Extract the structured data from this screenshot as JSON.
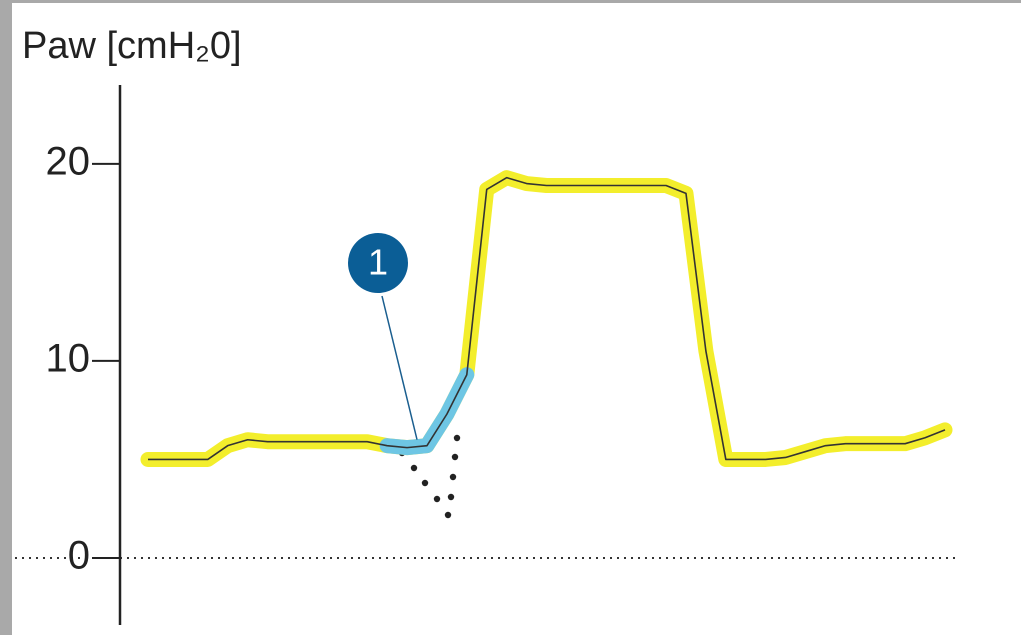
{
  "chart_data": {
    "type": "line",
    "title": "Paw [cmH₂0]",
    "categories": [
      null,
      null,
      null,
      null,
      null,
      null,
      null,
      null,
      null,
      null,
      null,
      null,
      null,
      null,
      null,
      null,
      null,
      null,
      null,
      null,
      null,
      null,
      null,
      null,
      null,
      null,
      null,
      null,
      null,
      null,
      null,
      null,
      null,
      null,
      null,
      null,
      null,
      null,
      null,
      null,
      null
    ],
    "series": [
      {
        "color": "#f3ee2c",
        "values": [
          5,
          5,
          5,
          5,
          5.7,
          6,
          5.9,
          5.9,
          5.9,
          5.9,
          5.9,
          5.9,
          5.7,
          5.6,
          5.7,
          7.3,
          9.3,
          18.7,
          19.3,
          19,
          18.9,
          18.9,
          18.9,
          18.9,
          18.9,
          18.9,
          18.9,
          18.5,
          10.5,
          5,
          5,
          5,
          5.1,
          5.4,
          5.7,
          5.8,
          5.8,
          5.8,
          5.8,
          6.1,
          6.5
        ]
      },
      {
        "color": "#6ec6e4",
        "values": [
          null,
          null,
          null,
          null,
          null,
          null,
          null,
          null,
          null,
          null,
          null,
          null,
          5.7,
          5.6,
          5.7,
          7.3,
          9.3,
          null,
          null,
          null,
          null,
          null,
          null,
          null,
          null,
          null,
          null,
          null,
          null,
          null,
          null,
          null,
          null,
          null,
          null,
          null,
          null,
          null,
          null,
          null,
          null
        ]
      }
    ],
    "annotation": "1",
    "ylim": [
      -3.4,
      24
    ],
    "yticks": [
      0,
      10,
      20
    ],
    "baseline": 0
  }
}
